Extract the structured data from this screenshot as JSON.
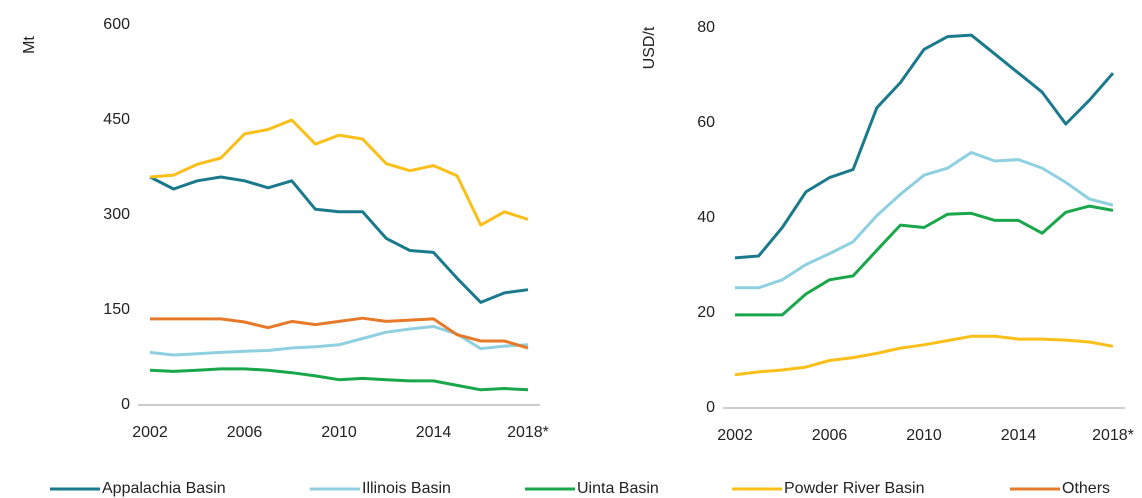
{
  "chart_data": [
    {
      "type": "line",
      "ylabel": "Mt",
      "categories": [
        "2002",
        null,
        null,
        null,
        "2006",
        null,
        null,
        null,
        "2010",
        null,
        null,
        null,
        "2014",
        null,
        null,
        null,
        "2018*"
      ],
      "ylim": [
        0,
        600
      ],
      "yticks": [
        0,
        150,
        300,
        450,
        600
      ],
      "series": [
        {
          "name": "Appalachia Basin",
          "color": "#1a7a8c",
          "values": [
            360,
            341,
            354,
            360,
            354,
            343,
            354,
            309,
            305,
            305,
            263,
            244,
            241,
            200,
            162,
            177,
            182
          ]
        },
        {
          "name": "Illinois Basin",
          "color": "#8fd0e0",
          "values": [
            83,
            79,
            81,
            83,
            85,
            86,
            90,
            92,
            95,
            105,
            115,
            120,
            124,
            112,
            89,
            93,
            95
          ]
        },
        {
          "name": "Uinta Basin",
          "color": "#1aa64a",
          "values": [
            55,
            53,
            55,
            57,
            57,
            55,
            51,
            46,
            40,
            42,
            40,
            38,
            38,
            31,
            24,
            26,
            24
          ]
        },
        {
          "name": "Powder River Basin",
          "color": "#fbbf1a",
          "values": [
            360,
            363,
            380,
            390,
            428,
            435,
            450,
            412,
            426,
            420,
            381,
            370,
            378,
            362,
            284,
            305,
            293
          ]
        },
        {
          "name": "Others",
          "color": "#e67a2a",
          "values": [
            136,
            136,
            136,
            136,
            131,
            122,
            132,
            127,
            132,
            137,
            132,
            134,
            136,
            111,
            101,
            101,
            90
          ]
        }
      ]
    },
    {
      "type": "line",
      "ylabel": "USD/t",
      "categories": [
        "2002",
        null,
        null,
        null,
        "2006",
        null,
        null,
        null,
        "2010",
        null,
        null,
        null,
        "2014",
        null,
        null,
        null,
        "2018*"
      ],
      "ylim": [
        0,
        80
      ],
      "yticks": [
        0,
        20,
        40,
        60,
        80
      ],
      "series": [
        {
          "values": [
            31.6,
            32,
            38,
            45.5,
            48.5,
            50.2,
            63.2,
            68.5,
            75.5,
            78.2,
            78.5,
            74.5,
            70.5,
            66.5,
            59.8,
            64.8,
            70.5
          ]
        },
        {
          "values": [
            25.3,
            25.3,
            27,
            30.2,
            32.5,
            35,
            40.5,
            45,
            49,
            50.5,
            53.8,
            52,
            52.3,
            50.5,
            47.5,
            44,
            42.7
          ]
        },
        {
          "values": [
            19.6,
            19.6,
            19.6,
            24,
            27,
            27.8,
            33.2,
            38.5,
            38,
            40.8,
            41,
            39.5,
            39.5,
            36.8,
            41.2,
            42.5,
            41.6
          ]
        },
        {
          "values": [
            7,
            7.6,
            8,
            8.6,
            10,
            10.6,
            11.5,
            12.6,
            13.3,
            14.2,
            15.1,
            15.1,
            14.5,
            14.5,
            14.3,
            13.9,
            13
          ]
        }
      ]
    }
  ]
}
